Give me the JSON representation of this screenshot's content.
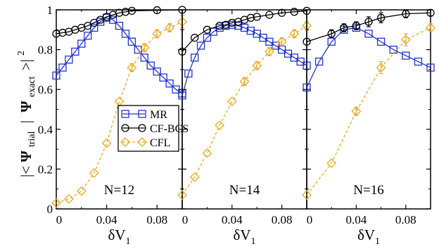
{
  "chart_data": {
    "type": "line",
    "layout": "three panels side by side, shared y-axis",
    "ylabel_parts": {
      "left_bars": "|<",
      "psi_trial": "Ψ",
      "trial_sub": "trial",
      "mid_bars": "|",
      "psi_exact": "Ψ",
      "exact_sub": "exact",
      "right_bracket": ">|",
      "power": "2"
    },
    "xlabel_parts": {
      "delta": "δV",
      "sub": "1"
    },
    "ylim": [
      0,
      1
    ],
    "yticks": [
      0,
      0.2,
      0.4,
      0.6,
      0.8,
      1
    ],
    "ytick_labels": [
      "0",
      "0.2",
      "0.4",
      "0.6",
      "0.8",
      "1"
    ],
    "xlim": [
      0,
      0.1
    ],
    "xticks": [
      0,
      0.04,
      0.08
    ],
    "xtick_labels": [
      "0",
      "0.04",
      "0.08"
    ],
    "legend": {
      "placement": "center-left of first panel boundary",
      "entries": [
        "MR",
        "CF-BCS",
        "CFL"
      ]
    },
    "colors": {
      "MR": "#2233cc",
      "CF-BCS": "#000000",
      "CFL": "#e8a91c"
    },
    "markers": {
      "MR": "square",
      "CF-BCS": "circle",
      "CFL": "diamond"
    },
    "panels": [
      {
        "label": "N=12",
        "series": [
          {
            "name": "MR",
            "x": [
              0,
              0.005,
              0.01,
              0.015,
              0.02,
              0.025,
              0.03,
              0.035,
              0.04,
              0.045,
              0.05,
              0.055,
              0.06,
              0.065,
              0.07,
              0.075,
              0.08,
              0.085,
              0.09,
              0.095,
              0.1
            ],
            "y": [
              0.67,
              0.71,
              0.75,
              0.79,
              0.83,
              0.87,
              0.91,
              0.94,
              0.96,
              0.95,
              0.92,
              0.88,
              0.84,
              0.8,
              0.76,
              0.72,
              0.69,
              0.66,
              0.63,
              0.6,
              0.58
            ]
          },
          {
            "name": "CF-BCS",
            "x": [
              0,
              0.005,
              0.01,
              0.015,
              0.02,
              0.025,
              0.03,
              0.035,
              0.04,
              0.045,
              0.05,
              0.055,
              0.06,
              0.08,
              0.1
            ],
            "y": [
              0.88,
              0.885,
              0.89,
              0.9,
              0.91,
              0.92,
              0.935,
              0.95,
              0.965,
              0.975,
              0.985,
              0.99,
              0.995,
              0.998,
              1.0
            ]
          },
          {
            "name": "CFL",
            "x": [
              0,
              0.01,
              0.02,
              0.03,
              0.04,
              0.05,
              0.06,
              0.07,
              0.08,
              0.09,
              0.1
            ],
            "y": [
              0.03,
              0.05,
              0.09,
              0.18,
              0.33,
              0.54,
              0.71,
              0.81,
              0.88,
              0.91,
              0.94
            ],
            "err": [
              0,
              0,
              0,
              0,
              0,
              0,
              0.02,
              0.02,
              0.02,
              0.02,
              0.03
            ]
          }
        ]
      },
      {
        "label": "N=14",
        "series": [
          {
            "name": "MR",
            "x": [
              0,
              0.005,
              0.01,
              0.015,
              0.02,
              0.025,
              0.03,
              0.035,
              0.04,
              0.045,
              0.05,
              0.055,
              0.06,
              0.065,
              0.07,
              0.075,
              0.08,
              0.085,
              0.09,
              0.095,
              0.1
            ],
            "y": [
              0.57,
              0.68,
              0.76,
              0.82,
              0.86,
              0.89,
              0.91,
              0.92,
              0.925,
              0.92,
              0.91,
              0.895,
              0.88,
              0.86,
              0.84,
              0.82,
              0.8,
              0.78,
              0.76,
              0.74,
              0.72
            ]
          },
          {
            "name": "CF-BCS",
            "x": [
              0,
              0.01,
              0.02,
              0.03,
              0.035,
              0.04,
              0.045,
              0.05,
              0.055,
              0.06,
              0.07,
              0.08,
              0.09,
              0.1
            ],
            "y": [
              0.79,
              0.86,
              0.9,
              0.92,
              0.925,
              0.935,
              0.94,
              0.95,
              0.96,
              0.965,
              0.975,
              0.985,
              0.99,
              0.995
            ]
          },
          {
            "name": "CFL",
            "x": [
              0,
              0.01,
              0.02,
              0.03,
              0.04,
              0.05,
              0.06,
              0.07,
              0.08,
              0.09,
              0.1
            ],
            "y": [
              0.07,
              0.16,
              0.28,
              0.42,
              0.54,
              0.64,
              0.72,
              0.79,
              0.84,
              0.88,
              0.92
            ],
            "err": [
              0,
              0,
              0,
              0,
              0,
              0.02,
              0.02,
              0.02,
              0.02,
              0.02,
              0.02
            ]
          }
        ]
      },
      {
        "label": "N=16",
        "series": [
          {
            "name": "MR",
            "x": [
              0,
              0.01,
              0.02,
              0.03,
              0.04,
              0.05,
              0.06,
              0.07,
              0.08,
              0.09,
              0.1
            ],
            "y": [
              0.61,
              0.74,
              0.84,
              0.9,
              0.91,
              0.88,
              0.84,
              0.8,
              0.77,
              0.74,
              0.71
            ]
          },
          {
            "name": "CF-BCS",
            "x": [
              0,
              0.02,
              0.03,
              0.04,
              0.05,
              0.06,
              0.08,
              0.1
            ],
            "y": [
              0.84,
              0.88,
              0.91,
              0.92,
              0.94,
              0.96,
              0.98,
              0.985
            ],
            "err": [
              0,
              0.02,
              0.02,
              0.02,
              0.025,
              0.025,
              0.02,
              0.015
            ]
          },
          {
            "name": "CFL",
            "x": [
              0,
              0.02,
              0.04,
              0.06,
              0.08,
              0.1
            ],
            "y": [
              0.07,
              0.23,
              0.49,
              0.71,
              0.85,
              0.91
            ],
            "err": [
              0,
              0,
              0.02,
              0.03,
              0.03,
              0.02
            ]
          }
        ]
      }
    ]
  }
}
